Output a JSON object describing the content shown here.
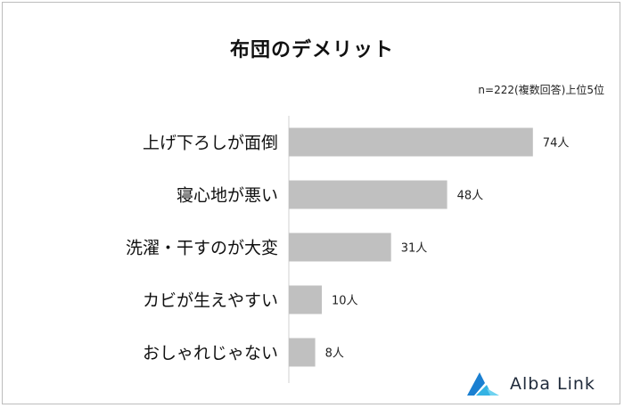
{
  "chart_data": {
    "type": "bar",
    "orientation": "horizontal",
    "title": "布団のデメリット",
    "subtitle": "n=222(複数回答)上位5位",
    "categories": [
      "上げ下ろしが面倒",
      "寝心地が悪い",
      "洗濯・干すのが大変",
      "カビが生えやすい",
      "おしゃれじゃない"
    ],
    "values": [
      74,
      48,
      31,
      10,
      8
    ],
    "value_labels": [
      "74人",
      "48人",
      "31人",
      "10人",
      "8人"
    ],
    "xlim": [
      0,
      100
    ],
    "grid": false,
    "bar_color": "#c0c0c0"
  },
  "logo": {
    "text": "Alba Link",
    "colors": [
      "#1a7fd1",
      "#34b3e4",
      "#6fd2f0"
    ]
  }
}
